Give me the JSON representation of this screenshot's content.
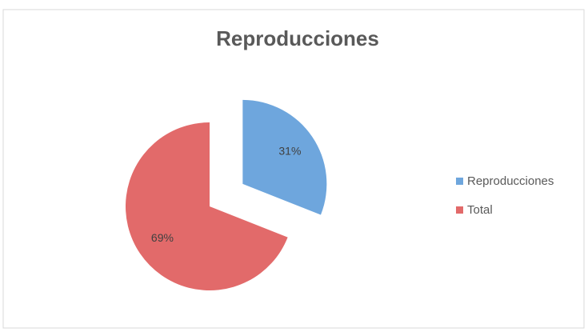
{
  "chart_data": {
    "type": "pie",
    "title": "Reproducciones",
    "categories": [
      "Reproducciones",
      "Total"
    ],
    "values": [
      31,
      69
    ],
    "value_labels": [
      "31%",
      "69%"
    ],
    "colors": [
      "#6ea6dd",
      "#e26a6a"
    ],
    "explode": [
      true,
      false
    ],
    "legend": "right"
  }
}
